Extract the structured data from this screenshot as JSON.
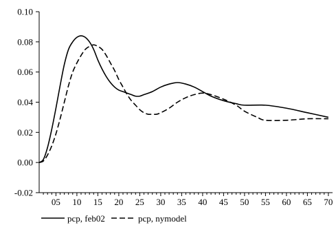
{
  "chart_data": {
    "type": "line",
    "title": "",
    "xlabel": "",
    "ylabel": "",
    "xlim": [
      1,
      71
    ],
    "ylim": [
      -0.02,
      0.1
    ],
    "grid": false,
    "legend_placement": "bottom-left",
    "x_ticks": [
      "05",
      "10",
      "15",
      "20",
      "25",
      "30",
      "35",
      "40",
      "45",
      "50",
      "55",
      "60",
      "65",
      "70"
    ],
    "y_ticks": [
      "-0.02",
      "0.00",
      "0.02",
      "0.04",
      "0.06",
      "0.08",
      "0.10"
    ],
    "series": [
      {
        "name": "pcp, feb02",
        "style": "solid",
        "color": "#000000",
        "x": [
          1,
          2,
          3,
          4,
          5,
          6,
          7,
          8,
          9,
          10,
          11,
          12,
          13,
          14,
          15,
          16,
          17,
          18,
          19,
          20,
          21,
          22,
          23,
          24,
          25,
          26,
          28,
          30,
          32,
          34,
          36,
          38,
          40,
          42,
          45,
          48,
          50,
          55,
          60,
          65,
          70
        ],
        "y": [
          0.0,
          0.002,
          0.01,
          0.022,
          0.036,
          0.051,
          0.065,
          0.075,
          0.08,
          0.083,
          0.084,
          0.083,
          0.08,
          0.075,
          0.068,
          0.062,
          0.057,
          0.053,
          0.05,
          0.048,
          0.047,
          0.046,
          0.045,
          0.044,
          0.044,
          0.045,
          0.047,
          0.05,
          0.052,
          0.053,
          0.052,
          0.05,
          0.047,
          0.044,
          0.041,
          0.039,
          0.038,
          0.038,
          0.036,
          0.033,
          0.03
        ]
      },
      {
        "name": "pcp, nymodel",
        "style": "dashed",
        "color": "#000000",
        "x": [
          1,
          2,
          3,
          4,
          5,
          6,
          7,
          8,
          9,
          10,
          11,
          12,
          13,
          14,
          15,
          16,
          17,
          18,
          19,
          20,
          21,
          22,
          23,
          24,
          25,
          26,
          27,
          28,
          29,
          30,
          32,
          34,
          36,
          38,
          40,
          42,
          45,
          48,
          50,
          53,
          55,
          60,
          65,
          70
        ],
        "y": [
          0.0,
          0.001,
          0.005,
          0.011,
          0.019,
          0.029,
          0.04,
          0.051,
          0.06,
          0.066,
          0.071,
          0.075,
          0.077,
          0.078,
          0.077,
          0.075,
          0.071,
          0.066,
          0.061,
          0.055,
          0.05,
          0.045,
          0.041,
          0.038,
          0.035,
          0.033,
          0.032,
          0.032,
          0.032,
          0.033,
          0.036,
          0.04,
          0.043,
          0.045,
          0.046,
          0.045,
          0.042,
          0.038,
          0.034,
          0.03,
          0.028,
          0.028,
          0.029,
          0.029
        ]
      }
    ]
  }
}
